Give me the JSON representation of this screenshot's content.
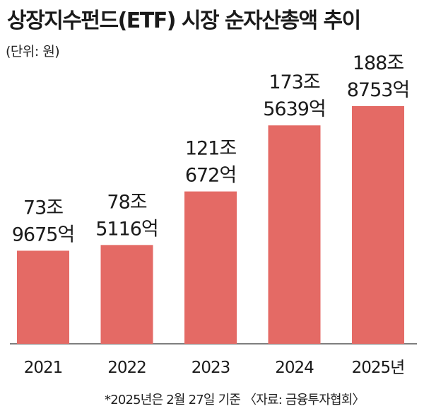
{
  "title": "상장지수펀드(ETF) 시장 순자산총액 추이",
  "unit": "(단위: 원)",
  "footnote": "*2025년은 2월 27일 기준 〈자료: 금융투자협회〉",
  "colors": {
    "bar": "#e46a65",
    "text": "#1a1a1a",
    "axis": "#555555"
  },
  "chart_data": {
    "type": "bar",
    "title": "상장지수펀드(ETF) 시장 순자산총액 추이",
    "ylabel": "",
    "xlabel": "",
    "unit": "(단위: 원)",
    "ylim": [
      0,
      210
    ],
    "grid": false,
    "categories": [
      "2021",
      "2022",
      "2023",
      "2024",
      "2025년"
    ],
    "values": [
      73.9675,
      78.5116,
      121.0672,
      173.5639,
      188.8753
    ],
    "labels": [
      [
        "73조",
        "9675억"
      ],
      [
        "78조",
        "5116억"
      ],
      [
        "121조",
        "672억"
      ],
      [
        "173조",
        "5639억"
      ],
      [
        "188조",
        "8753억"
      ]
    ]
  }
}
